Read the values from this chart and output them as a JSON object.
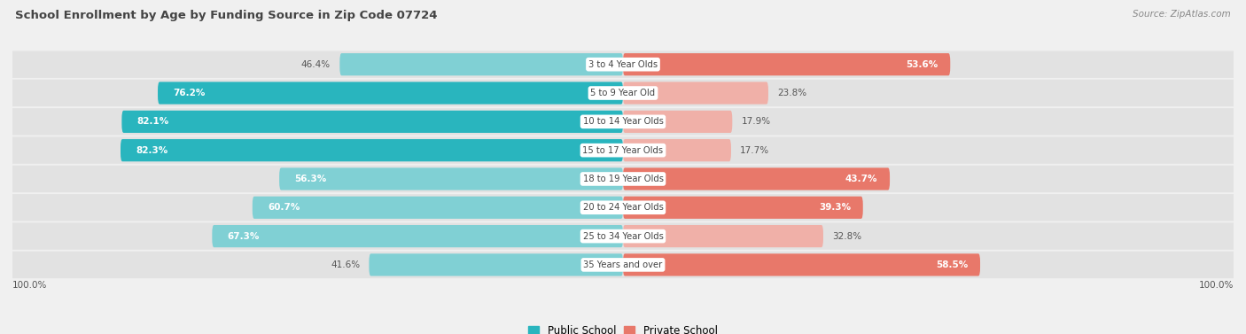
{
  "title": "School Enrollment by Age by Funding Source in Zip Code 07724",
  "source": "Source: ZipAtlas.com",
  "categories": [
    "3 to 4 Year Olds",
    "5 to 9 Year Old",
    "10 to 14 Year Olds",
    "15 to 17 Year Olds",
    "18 to 19 Year Olds",
    "20 to 24 Year Olds",
    "25 to 34 Year Olds",
    "35 Years and over"
  ],
  "public_values": [
    46.4,
    76.2,
    82.1,
    82.3,
    56.3,
    60.7,
    67.3,
    41.6
  ],
  "private_values": [
    53.6,
    23.8,
    17.9,
    17.7,
    43.7,
    39.3,
    32.8,
    58.5
  ],
  "public_color_dark": "#29b5be",
  "public_color_light": "#80d0d4",
  "private_color_dark": "#e8786a",
  "private_color_light": "#f0b0a8",
  "bg_color": "#f0f0f0",
  "row_bg": "#e2e2e2",
  "row_gap_bg": "#f0f0f0",
  "xlim": 100,
  "legend_public": "Public School",
  "legend_private": "Private School",
  "title_color": "#444444",
  "source_color": "#888888",
  "label_dark_color": "#555555",
  "label_white_color": "#ffffff"
}
